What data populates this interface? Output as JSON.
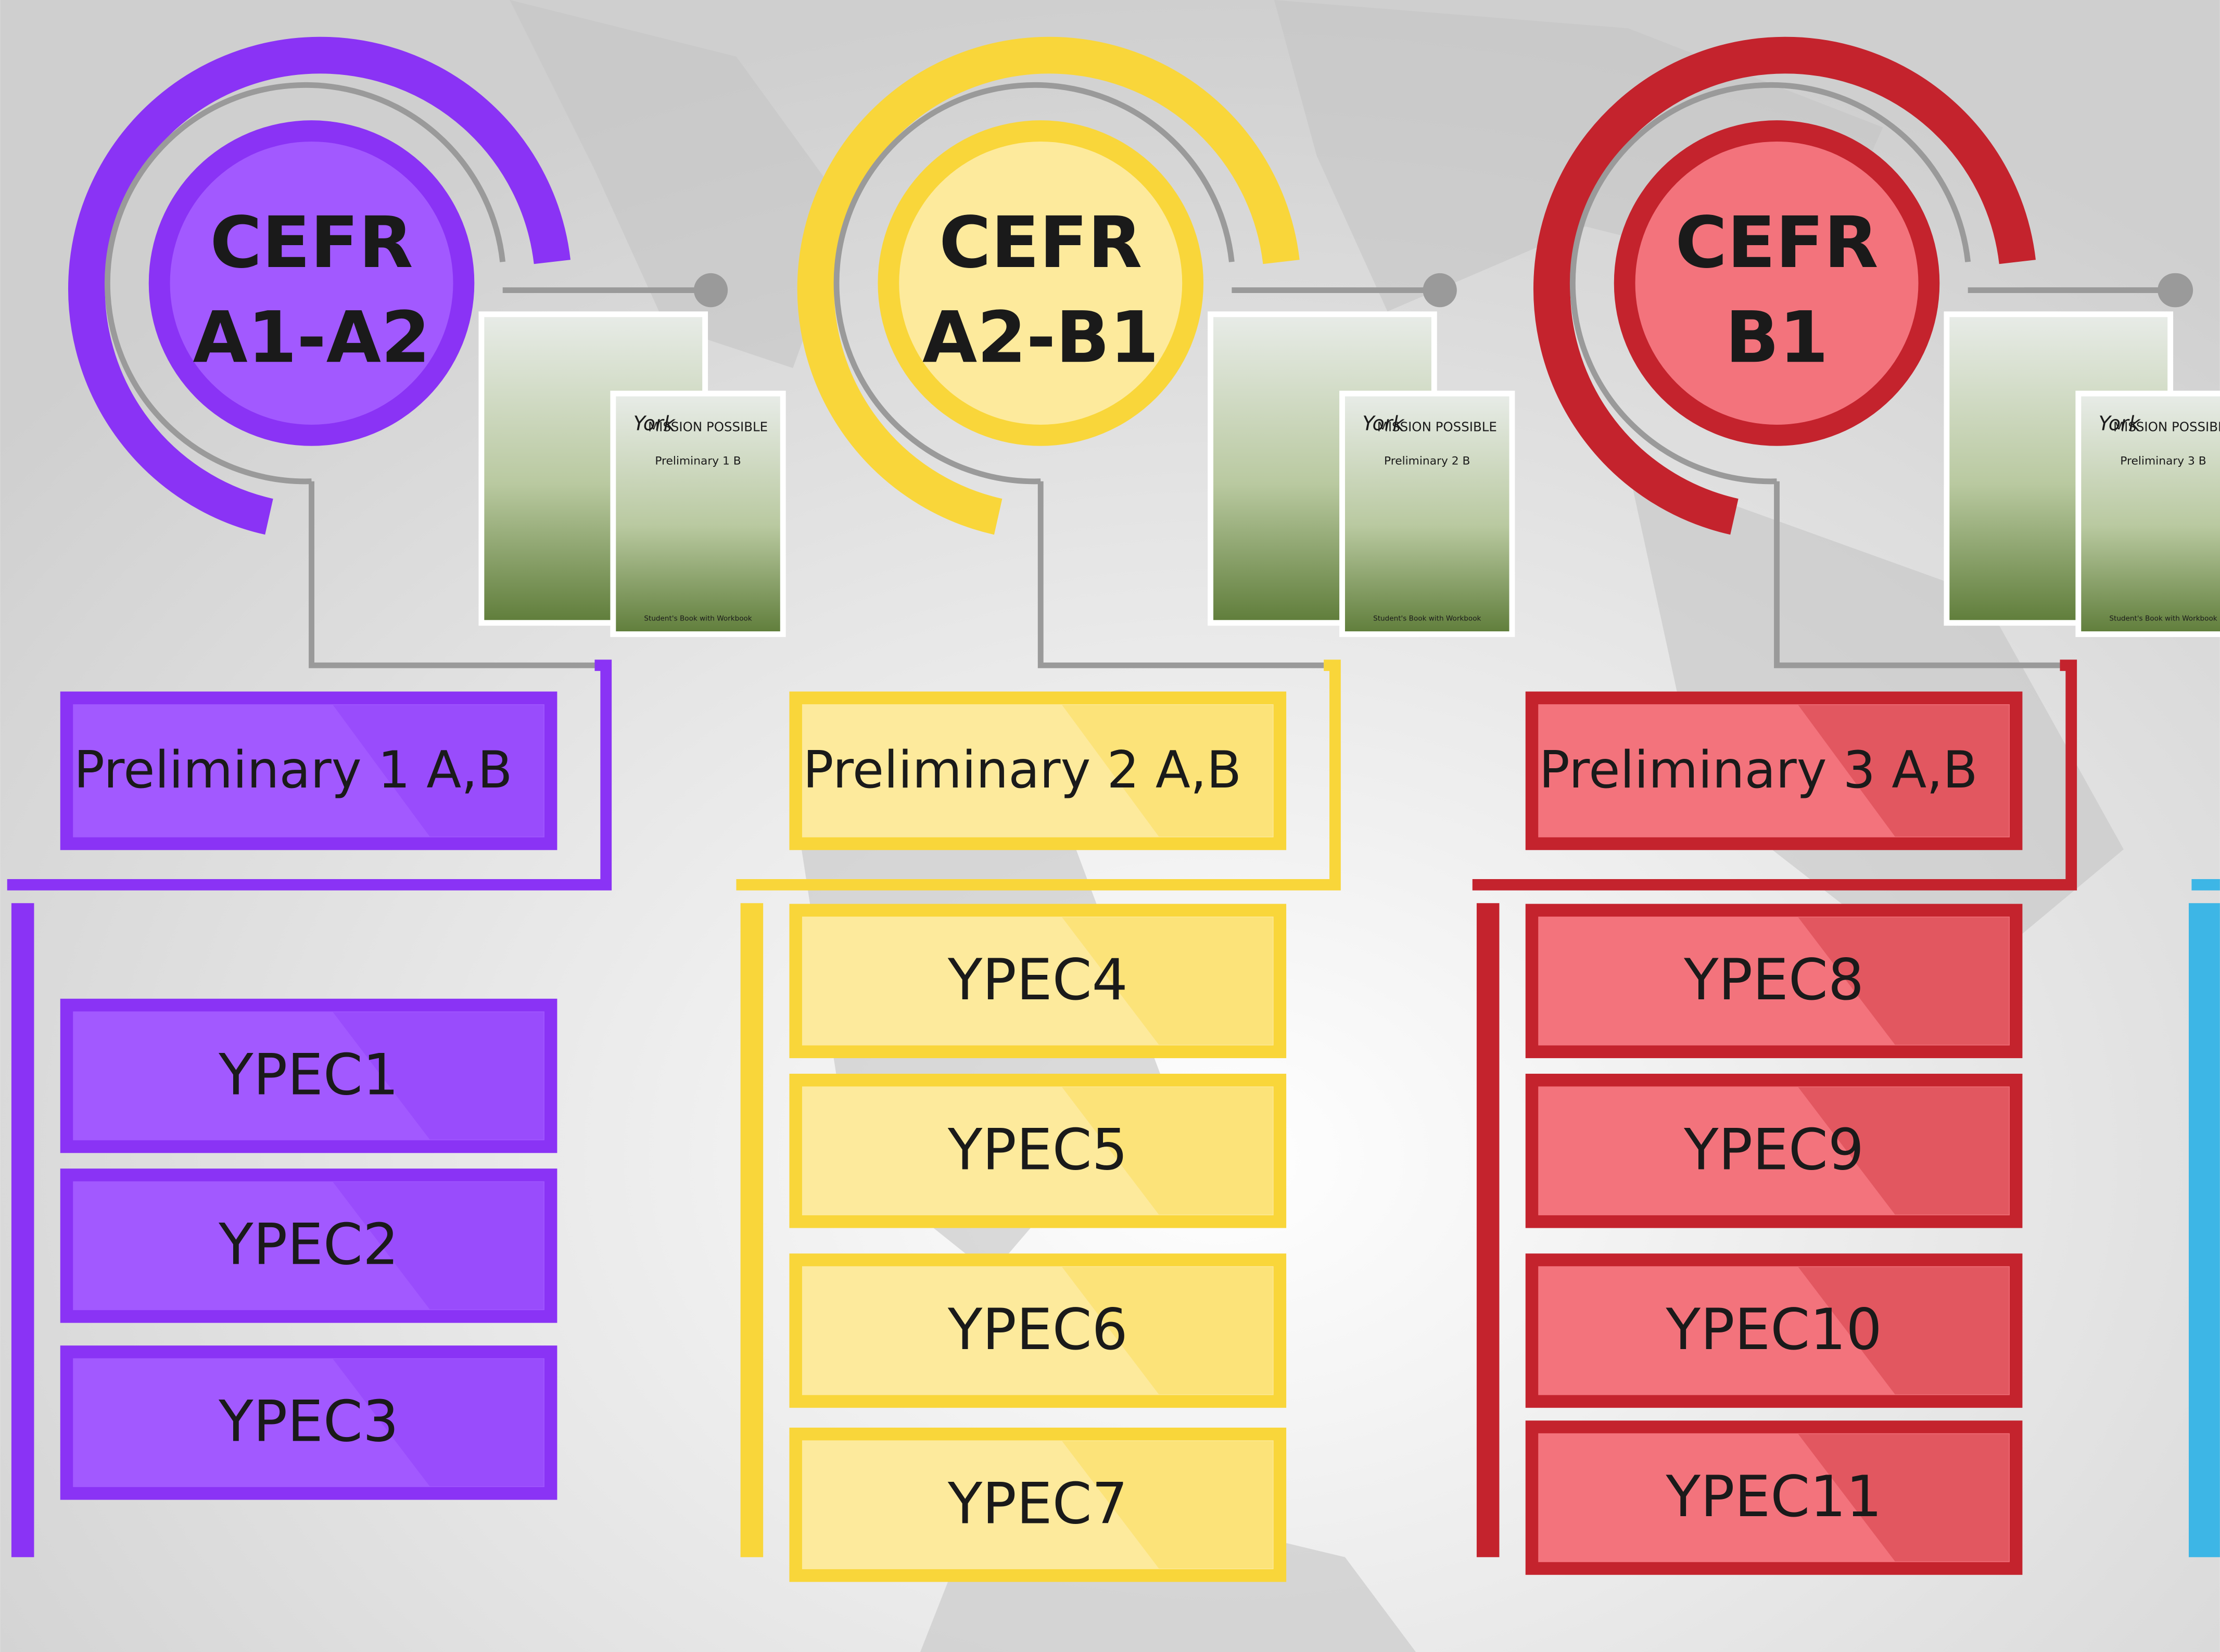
{
  "columns": [
    {
      "cefr_label": "CEFR",
      "level": "A1-A2",
      "color": "#8a33f5",
      "light": "#a259ff",
      "book": {
        "brand": "York",
        "series": "MISSION POSSIBLE",
        "volume": "Preliminary 1 B",
        "subtitle": "Student's Book with Workbook"
      },
      "program": "Preliminary 1 A,B",
      "courses": [
        "YPEC1",
        "YPEC2",
        "YPEC3"
      ]
    },
    {
      "cefr_label": "CEFR",
      "level": "A2-B1",
      "color": "#f9d63a",
      "light": "#fdea9c",
      "book": {
        "brand": "York",
        "series": "MISSION POSSIBLE",
        "volume": "Preliminary 2 B",
        "subtitle": "Student's Book with Workbook"
      },
      "program": "Preliminary 2 A,B",
      "courses": [
        "YPEC4",
        "YPEC5",
        "YPEC6",
        "YPEC7"
      ]
    },
    {
      "cefr_label": "CEFR",
      "level": "B1",
      "color": "#c4232d",
      "light": "#f3737c",
      "book": {
        "brand": "York",
        "series": "MISSION POSSIBLE",
        "volume": "Preliminary 3 B",
        "subtitle": "Student's Book with Workbook"
      },
      "program": "Preliminary 3 A,B",
      "courses": [
        "YPEC8",
        "YPEC9",
        "YPEC10",
        "YPEC11"
      ]
    }
  ]
}
